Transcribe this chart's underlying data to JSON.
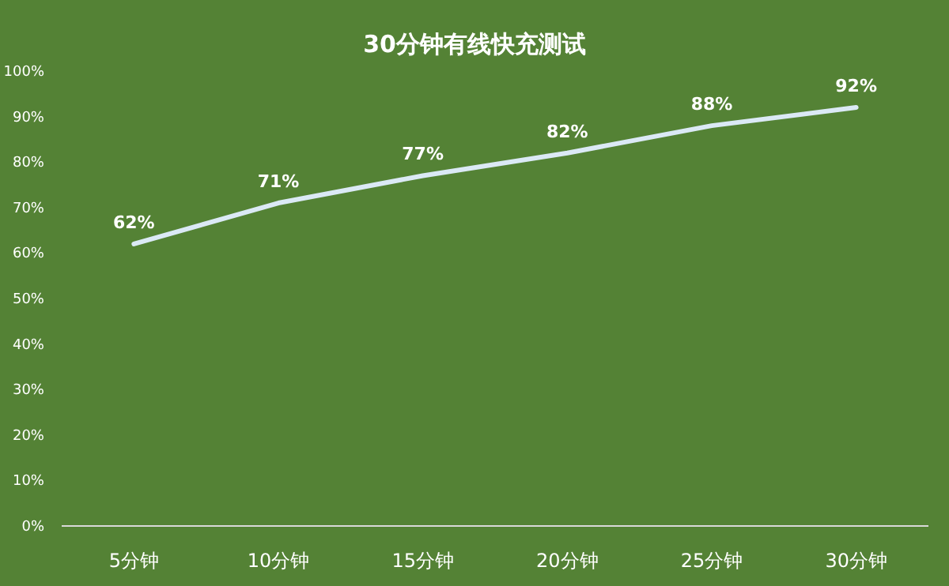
{
  "chart_data": {
    "type": "line",
    "title": "30分钟有线快充测试",
    "categories": [
      "5分钟",
      "10分钟",
      "15分钟",
      "20分钟",
      "25分钟",
      "30分钟"
    ],
    "series": [
      {
        "color": "#dbe9f5",
        "values": [
          62,
          71,
          77,
          82,
          88,
          92
        ]
      }
    ],
    "ylim": [
      0,
      100
    ],
    "yticks": [
      {
        "value": 0,
        "label": "0%"
      },
      {
        "value": 10,
        "label": "10%"
      },
      {
        "value": 20,
        "label": "20%"
      },
      {
        "value": 30,
        "label": "30%"
      },
      {
        "value": 40,
        "label": "40%"
      },
      {
        "value": 50,
        "label": "50%"
      },
      {
        "value": 60,
        "label": "60%"
      },
      {
        "value": 70,
        "label": "70%"
      },
      {
        "value": 80,
        "label": "80%"
      },
      {
        "value": 90,
        "label": "90%"
      },
      {
        "value": 100,
        "label": "100%"
      }
    ],
    "value_labels": [
      "62%",
      "71%",
      "77%",
      "82%",
      "88%",
      "92%"
    ],
    "marker": "none",
    "line_style": "solid",
    "grid": false
  }
}
